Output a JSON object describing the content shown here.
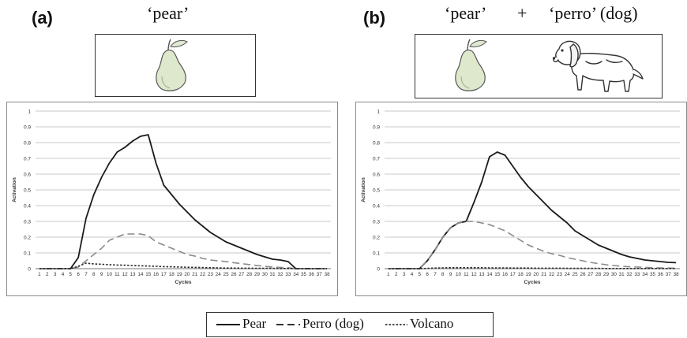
{
  "panels": [
    {
      "label": "(a)",
      "words": {
        "left": "‘pear’",
        "plus": "",
        "right": ""
      },
      "icons": [
        "pear-drawing"
      ]
    },
    {
      "label": "(b)",
      "words": {
        "left": "‘pear’",
        "plus": "+",
        "right": "‘perro’ (dog)"
      },
      "icons": [
        "pear-drawing",
        "dog-drawing"
      ]
    }
  ],
  "legend": {
    "entries": [
      {
        "label": "Pear",
        "style": "solid"
      },
      {
        "label": "Perro (dog)",
        "style": "dashed"
      },
      {
        "label": "Volcano",
        "style": "dotted"
      }
    ]
  },
  "chart_data": [
    {
      "type": "line",
      "xlabel": "Cycles",
      "ylabel": "Activation",
      "ylim": [
        0,
        1
      ],
      "yticks": [
        "0",
        "0.1",
        "0.2",
        "0.3",
        "0.4",
        "0.5",
        "0.6",
        "0.7",
        "0.8",
        "0.9",
        "1"
      ],
      "x": [
        1,
        2,
        3,
        4,
        5,
        6,
        7,
        8,
        9,
        10,
        11,
        12,
        13,
        14,
        15,
        16,
        17,
        18,
        19,
        20,
        21,
        22,
        23,
        24,
        25,
        26,
        27,
        28,
        29,
        30,
        31,
        32,
        33,
        34,
        35,
        36,
        37,
        38
      ],
      "grid": true,
      "series": [
        {
          "name": "Pear",
          "style": "solid",
          "color": "#1a1a1a",
          "values": [
            0,
            0,
            0,
            0,
            0,
            0.07,
            0.32,
            0.47,
            0.58,
            0.67,
            0.74,
            0.77,
            0.81,
            0.84,
            0.85,
            0.67,
            0.53,
            0.47,
            0.41,
            0.36,
            0.31,
            0.27,
            0.23,
            0.2,
            0.17,
            0.15,
            0.13,
            0.11,
            0.09,
            0.075,
            0.06,
            0.055,
            0.045,
            0,
            0,
            0,
            0,
            0
          ]
        },
        {
          "name": "Perro (dog)",
          "style": "dashed",
          "color": "#8a8a8a",
          "values": [
            0,
            0,
            0,
            0,
            0,
            0.01,
            0.05,
            0.09,
            0.13,
            0.18,
            0.2,
            0.22,
            0.22,
            0.22,
            0.21,
            0.17,
            0.15,
            0.13,
            0.11,
            0.09,
            0.08,
            0.065,
            0.055,
            0.05,
            0.045,
            0.038,
            0.032,
            0.026,
            0.02,
            0.015,
            0.01,
            0.008,
            0.006,
            0,
            0,
            0,
            0,
            0
          ]
        },
        {
          "name": "Volcano",
          "style": "dotted",
          "color": "#2a2a2a",
          "values": [
            0,
            0,
            0,
            0,
            0,
            0.015,
            0.035,
            0.03,
            0.028,
            0.025,
            0.023,
            0.022,
            0.02,
            0.018,
            0.017,
            0.015,
            0.013,
            0.012,
            0.01,
            0.009,
            0.008,
            0.007,
            0.006,
            0.005,
            0.004,
            0.004,
            0.003,
            0.003,
            0.002,
            0.002,
            0.002,
            0.001,
            0.001,
            0,
            0,
            0,
            0,
            0
          ]
        }
      ]
    },
    {
      "type": "line",
      "xlabel": "Cycles",
      "ylabel": "Activation",
      "ylim": [
        0,
        1
      ],
      "yticks": [
        "0",
        "0.1",
        "0.2",
        "0.3",
        "0.4",
        "0.5",
        "0.6",
        "0.7",
        "0.8",
        "0.9",
        "1"
      ],
      "x": [
        1,
        2,
        3,
        4,
        5,
        6,
        7,
        8,
        9,
        10,
        11,
        12,
        13,
        14,
        15,
        16,
        17,
        18,
        19,
        20,
        21,
        22,
        23,
        24,
        25,
        26,
        27,
        28,
        29,
        30,
        31,
        32,
        33,
        34,
        35,
        36,
        37,
        38
      ],
      "grid": true,
      "series": [
        {
          "name": "Pear",
          "style": "solid",
          "color": "#1a1a1a",
          "values": [
            0,
            0,
            0,
            0,
            0,
            0.05,
            0.12,
            0.2,
            0.26,
            0.29,
            0.3,
            0.42,
            0.55,
            0.71,
            0.74,
            0.72,
            0.65,
            0.58,
            0.52,
            0.47,
            0.42,
            0.37,
            0.33,
            0.29,
            0.24,
            0.21,
            0.18,
            0.15,
            0.13,
            0.11,
            0.09,
            0.075,
            0.065,
            0.055,
            0.05,
            0.045,
            0.04,
            0.038
          ]
        },
        {
          "name": "Perro (dog)",
          "style": "dashed",
          "color": "#8a8a8a",
          "values": [
            0,
            0,
            0,
            0,
            0,
            0.05,
            0.12,
            0.2,
            0.26,
            0.29,
            0.3,
            0.3,
            0.29,
            0.28,
            0.26,
            0.24,
            0.21,
            0.18,
            0.15,
            0.13,
            0.11,
            0.095,
            0.085,
            0.07,
            0.06,
            0.05,
            0.04,
            0.032,
            0.025,
            0.02,
            0.015,
            0.012,
            0.01,
            0.008,
            0.006,
            0.005,
            0.004,
            0.003
          ]
        },
        {
          "name": "Volcano",
          "style": "dotted",
          "color": "#2a2a2a",
          "values": [
            0,
            0,
            0,
            0,
            0,
            0.002,
            0.004,
            0.005,
            0.006,
            0.006,
            0.006,
            0.006,
            0.006,
            0.005,
            0.005,
            0.005,
            0.004,
            0.004,
            0.004,
            0.003,
            0.003,
            0.003,
            0.003,
            0.002,
            0.002,
            0.002,
            0.002,
            0.002,
            0.001,
            0.001,
            0.001,
            0.001,
            0.001,
            0.001,
            0.001,
            0.001,
            0.001,
            0.001
          ]
        }
      ]
    }
  ]
}
